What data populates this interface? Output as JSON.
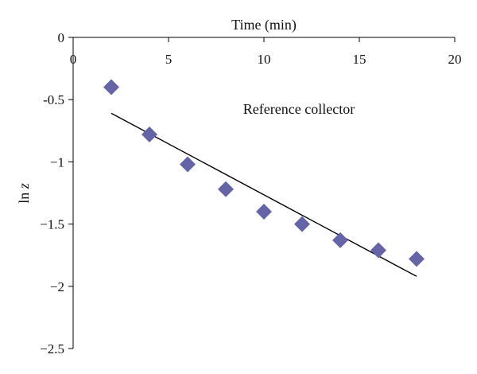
{
  "chart_data": {
    "type": "scatter",
    "xlabel": "Time (min)",
    "ylabel": "ln z",
    "xlim": [
      0,
      20
    ],
    "ylim": [
      -2.5,
      0
    ],
    "x_axis_position": "top",
    "grid": false,
    "x_ticks": [
      0,
      5,
      10,
      15,
      20
    ],
    "x_tick_labels": [
      "0",
      "5",
      "10",
      "15",
      "20"
    ],
    "y_ticks": [
      0,
      -0.5,
      -1,
      -1.5,
      -2,
      -2.5
    ],
    "y_tick_labels": [
      "0",
      "-0.5",
      "−1",
      "−1.5",
      "−2",
      "−2.5"
    ],
    "annotation": "Reference collector",
    "marker_color": "#6464a6",
    "series": [
      {
        "marker": "diamond",
        "x": [
          2,
          4,
          6,
          8,
          10,
          12,
          14,
          16,
          18
        ],
        "y": [
          -0.4,
          -0.78,
          -1.02,
          -1.22,
          -1.4,
          -1.5,
          -1.63,
          -1.71,
          -1.78
        ]
      }
    ],
    "trendline": {
      "type": "linear",
      "color": "#000000",
      "x": [
        2,
        18
      ],
      "y": [
        -0.61,
        -1.92
      ]
    }
  }
}
